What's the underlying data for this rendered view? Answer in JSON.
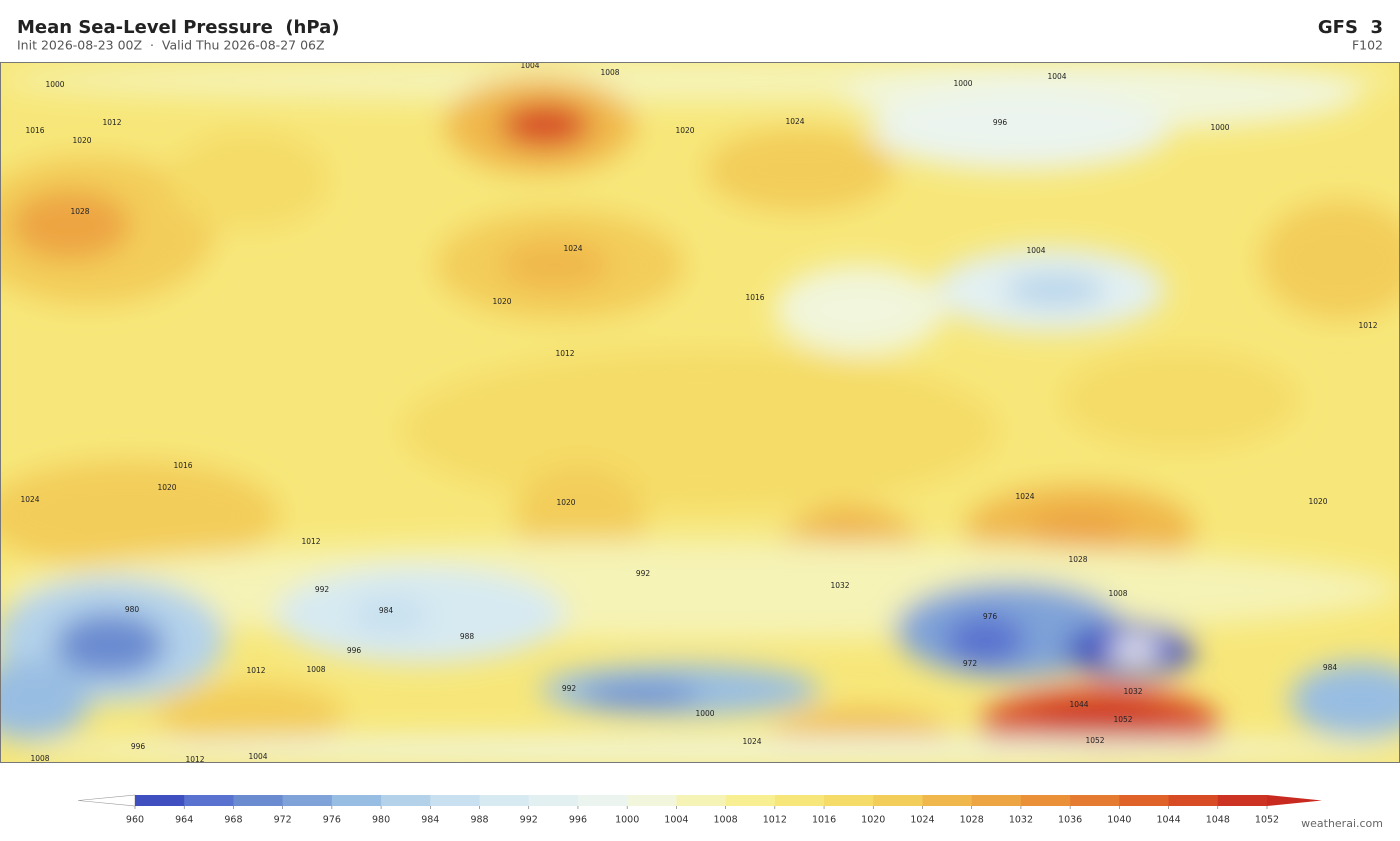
{
  "header": {
    "title": "Mean Sea-Level Pressure  (hPa)",
    "subtitle": "Init 2026-08-23 00Z  ·  Valid Thu 2026-08-27 06Z",
    "model": "GFS  3",
    "forecast_hour": "F102"
  },
  "map": {
    "contour_labels": [
      1004,
      1008,
      1004,
      1000,
      1000,
      1012,
      1016,
      1020,
      1020,
      1024,
      996,
      1000,
      1028,
      1024,
      1020,
      1004,
      1016,
      1012,
      1012,
      1016,
      1020,
      1024,
      1024,
      1020,
      1012,
      1028,
      1032,
      1008,
      992,
      992,
      984,
      988,
      996,
      980,
      976,
      972,
      1012,
      1008,
      992,
      1000,
      1024,
      1044,
      1052,
      1052,
      1032,
      1008,
      1004,
      1012,
      1020,
      984,
      996
    ]
  },
  "colorbar": {
    "levels": [
      960,
      964,
      968,
      972,
      976,
      980,
      984,
      988,
      992,
      996,
      1000,
      1004,
      1008,
      1012,
      1016,
      1020,
      1024,
      1028,
      1032,
      1036,
      1040,
      1044,
      1048,
      1052
    ],
    "colors": [
      "#3f4fbf",
      "#5a72cf",
      "#6a8bd0",
      "#7fa3d8",
      "#98bde2",
      "#b3d2ea",
      "#c8e0ef",
      "#d7eaf2",
      "#e2f0f2",
      "#ebf4ee",
      "#f1f6dc",
      "#f5f3b6",
      "#f7ef92",
      "#f7e77a",
      "#f5dc68",
      "#f3cd5a",
      "#f0b84c",
      "#eda442",
      "#e99038",
      "#e57b30",
      "#df6229",
      "#d74b25",
      "#cc3322"
    ],
    "under_color": "#ffffff",
    "over_color": "#c82a20"
  },
  "footer": {
    "credit": "weatherai.com"
  }
}
